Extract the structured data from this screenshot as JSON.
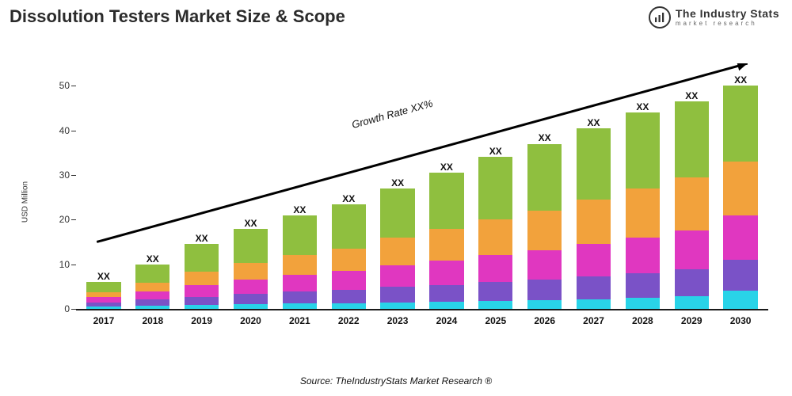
{
  "title": "Dissolution Testers Market Size & Scope",
  "logo": {
    "main": "The Industry Stats",
    "sub": "market research"
  },
  "source_line": "Source: TheIndustryStats Market Research ®",
  "chart": {
    "type": "stacked-bar",
    "y_axis_label": "USD Million",
    "y_max": 55,
    "y_ticks": [
      0,
      10,
      20,
      30,
      40,
      50
    ],
    "categories": [
      "2017",
      "2018",
      "2019",
      "2020",
      "2021",
      "2022",
      "2023",
      "2024",
      "2025",
      "2026",
      "2027",
      "2028",
      "2029",
      "2030"
    ],
    "bar_top_label": "XX",
    "trend_label": "Growth Rate XX%",
    "segment_order_bottom_to_top": [
      "cyan",
      "purple",
      "magenta",
      "orange",
      "green"
    ],
    "segment_colors": {
      "cyan": "#29d3e8",
      "purple": "#7a52c7",
      "magenta": "#e037c0",
      "orange": "#f2a23c",
      "green": "#8fbf3f"
    },
    "series": [
      {
        "category": "2017",
        "cyan": 0.6,
        "purple": 0.9,
        "magenta": 1.2,
        "orange": 1.1,
        "green": 2.3
      },
      {
        "category": "2018",
        "cyan": 0.8,
        "purple": 1.3,
        "magenta": 1.8,
        "orange": 2.0,
        "green": 4.1
      },
      {
        "category": "2019",
        "cyan": 0.9,
        "purple": 1.8,
        "magenta": 2.6,
        "orange": 3.0,
        "green": 6.2
      },
      {
        "category": "2020",
        "cyan": 1.1,
        "purple": 2.3,
        "magenta": 3.2,
        "orange": 3.7,
        "green": 7.7
      },
      {
        "category": "2021",
        "cyan": 1.2,
        "purple": 2.7,
        "magenta": 3.7,
        "orange": 4.4,
        "green": 9.0
      },
      {
        "category": "2022",
        "cyan": 1.3,
        "purple": 3.0,
        "magenta": 4.2,
        "orange": 5.0,
        "green": 10.0
      },
      {
        "category": "2023",
        "cyan": 1.5,
        "purple": 3.4,
        "magenta": 4.8,
        "orange": 6.3,
        "green": 11.0
      },
      {
        "category": "2024",
        "cyan": 1.6,
        "purple": 3.8,
        "magenta": 5.4,
        "orange": 7.2,
        "green": 12.5
      },
      {
        "category": "2025",
        "cyan": 1.8,
        "purple": 4.2,
        "magenta": 6.0,
        "orange": 8.0,
        "green": 14.0
      },
      {
        "category": "2026",
        "cyan": 2.0,
        "purple": 4.6,
        "magenta": 6.6,
        "orange": 8.8,
        "green": 15.0
      },
      {
        "category": "2027",
        "cyan": 2.2,
        "purple": 5.0,
        "magenta": 7.3,
        "orange": 10.0,
        "green": 16.0
      },
      {
        "category": "2028",
        "cyan": 2.5,
        "purple": 5.5,
        "magenta": 8.0,
        "orange": 11.0,
        "green": 17.0
      },
      {
        "category": "2029",
        "cyan": 2.8,
        "purple": 6.0,
        "magenta": 8.7,
        "orange": 12.0,
        "green": 17.0
      },
      {
        "category": "2030",
        "cyan": 4.0,
        "purple": 7.0,
        "magenta": 10.0,
        "orange": 12.0,
        "green": 17.0
      }
    ],
    "background_color": "#ffffff",
    "baseline_color": "#1a1a1a",
    "bar_width_ratio": 0.7,
    "label_fontsize": 12,
    "title_fontsize": 22,
    "trend_arrow": {
      "x1_pct": 3,
      "y1_value": 15,
      "x2_pct": 97,
      "y2_value": 55
    }
  }
}
